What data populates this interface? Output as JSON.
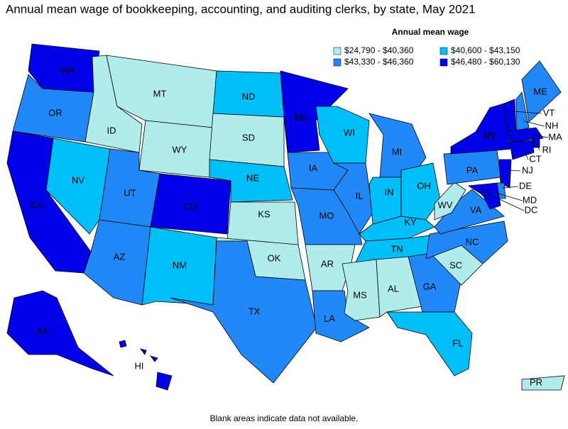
{
  "title": "Annual mean wage of bookkeeping, accounting, and auditing clerks, by state, May 2021",
  "legend": {
    "title": "Annual mean wage",
    "items": [
      {
        "label": "$24,790 - $40,360",
        "color": "#b0ecec"
      },
      {
        "label": "$40,600 - $43,150",
        "color": "#00bff8"
      },
      {
        "label": "$43,330 - $46,360",
        "color": "#2288f8"
      },
      {
        "label": "$46,480 - $60,130",
        "color": "#0000e8"
      }
    ]
  },
  "states": [
    {
      "label": "WA",
      "color": "#0000e8"
    },
    {
      "label": "OR",
      "color": "#2288f8"
    },
    {
      "label": "CA",
      "color": "#0000e8"
    },
    {
      "label": "NV",
      "color": "#00bff8"
    },
    {
      "label": "ID",
      "color": "#b0ecec"
    },
    {
      "label": "MT",
      "color": "#b0ecec"
    },
    {
      "label": "WY",
      "color": "#b0ecec"
    },
    {
      "label": "UT",
      "color": "#2288f8"
    },
    {
      "label": "CO",
      "color": "#0000e8"
    },
    {
      "label": "AZ",
      "color": "#2288f8"
    },
    {
      "label": "NM",
      "color": "#00bff8"
    },
    {
      "label": "ND",
      "color": "#00bff8"
    },
    {
      "label": "SD",
      "color": "#b0ecec"
    },
    {
      "label": "NE",
      "color": "#00bff8"
    },
    {
      "label": "KS",
      "color": "#b0ecec"
    },
    {
      "label": "OK",
      "color": "#b0ecec"
    },
    {
      "label": "TX",
      "color": "#2288f8"
    },
    {
      "label": "MN",
      "color": "#0000e8"
    },
    {
      "label": "IA",
      "color": "#2288f8"
    },
    {
      "label": "MO",
      "color": "#2288f8"
    },
    {
      "label": "AR",
      "color": "#b0ecec"
    },
    {
      "label": "LA",
      "color": "#2288f8"
    },
    {
      "label": "WI",
      "color": "#00bff8"
    },
    {
      "label": "IL",
      "color": "#2288f8"
    },
    {
      "label": "MI",
      "color": "#2288f8"
    },
    {
      "label": "IN",
      "color": "#00bff8"
    },
    {
      "label": "OH",
      "color": "#00bff8"
    },
    {
      "label": "KY",
      "color": "#00bff8"
    },
    {
      "label": "TN",
      "color": "#00bff8"
    },
    {
      "label": "MS",
      "color": "#b0ecec"
    },
    {
      "label": "AL",
      "color": "#b0ecec"
    },
    {
      "label": "GA",
      "color": "#2288f8"
    },
    {
      "label": "FL",
      "color": "#00bff8"
    },
    {
      "label": "SC",
      "color": "#b0ecec"
    },
    {
      "label": "NC",
      "color": "#2288f8"
    },
    {
      "label": "VA",
      "color": "#2288f8"
    },
    {
      "label": "WV",
      "color": "#b0ecec"
    },
    {
      "label": "PA",
      "color": "#2288f8"
    },
    {
      "label": "NY",
      "color": "#0000e8"
    },
    {
      "label": "VT",
      "color": "#0000e8"
    },
    {
      "label": "NH",
      "color": "#2288f8"
    },
    {
      "label": "ME",
      "color": "#2288f8"
    },
    {
      "label": "MA",
      "color": "#0000e8"
    },
    {
      "label": "RI",
      "color": "#0000e8"
    },
    {
      "label": "CT",
      "color": "#0000e8"
    },
    {
      "label": "NJ",
      "color": "#0000e8"
    },
    {
      "label": "DE",
      "color": "#2288f8"
    },
    {
      "label": "MD",
      "color": "#0000e8"
    },
    {
      "label": "DC",
      "color": "#0000e8"
    },
    {
      "label": "AK",
      "color": "#0000e8"
    },
    {
      "label": "HI",
      "color": "#0000e8"
    },
    {
      "label": "PR",
      "color": "#b0ecec"
    }
  ],
  "note": "Blank areas indicate data not available."
}
